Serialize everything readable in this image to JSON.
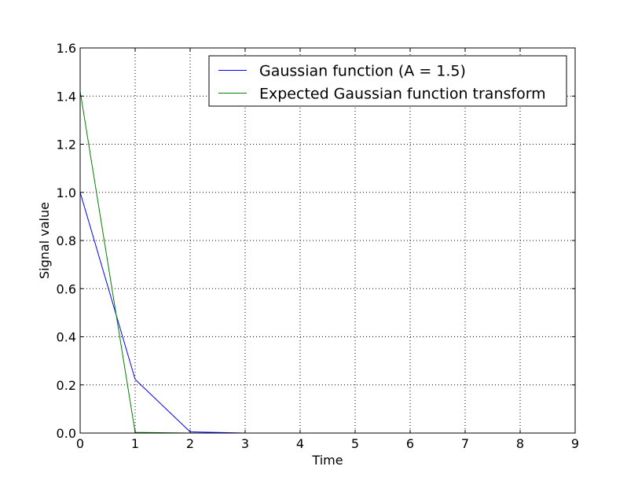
{
  "chart_data": {
    "type": "line",
    "title": "",
    "xlabel": "Time",
    "ylabel": "Signal value",
    "xlim": [
      0,
      9
    ],
    "ylim": [
      0,
      1.6
    ],
    "x_ticks": [
      "0",
      "1",
      "2",
      "3",
      "4",
      "5",
      "6",
      "7",
      "8",
      "9"
    ],
    "y_ticks": [
      "0.0",
      "0.2",
      "0.4",
      "0.6",
      "0.8",
      "1.0",
      "1.2",
      "1.4",
      "1.6"
    ],
    "grid": true,
    "legend_position": "top-right",
    "series": [
      {
        "name": "Gaussian function (A = 1.5)",
        "color": "#0000ff",
        "x": [
          0,
          1,
          2,
          3,
          4,
          5,
          6,
          7,
          8,
          9
        ],
        "y": [
          1.0,
          0.223,
          0.005,
          0.0,
          0.0,
          0.0,
          0.0,
          0.0,
          0.0,
          0.0
        ]
      },
      {
        "name": "Expected Gaussian function transform",
        "color": "#008000",
        "x": [
          0,
          1,
          2,
          3,
          4,
          5,
          6,
          7,
          8,
          9
        ],
        "y": [
          1.42,
          0.003,
          0.0,
          0.0,
          0.0,
          0.0,
          0.0,
          0.0,
          0.0,
          0.0
        ]
      }
    ]
  }
}
